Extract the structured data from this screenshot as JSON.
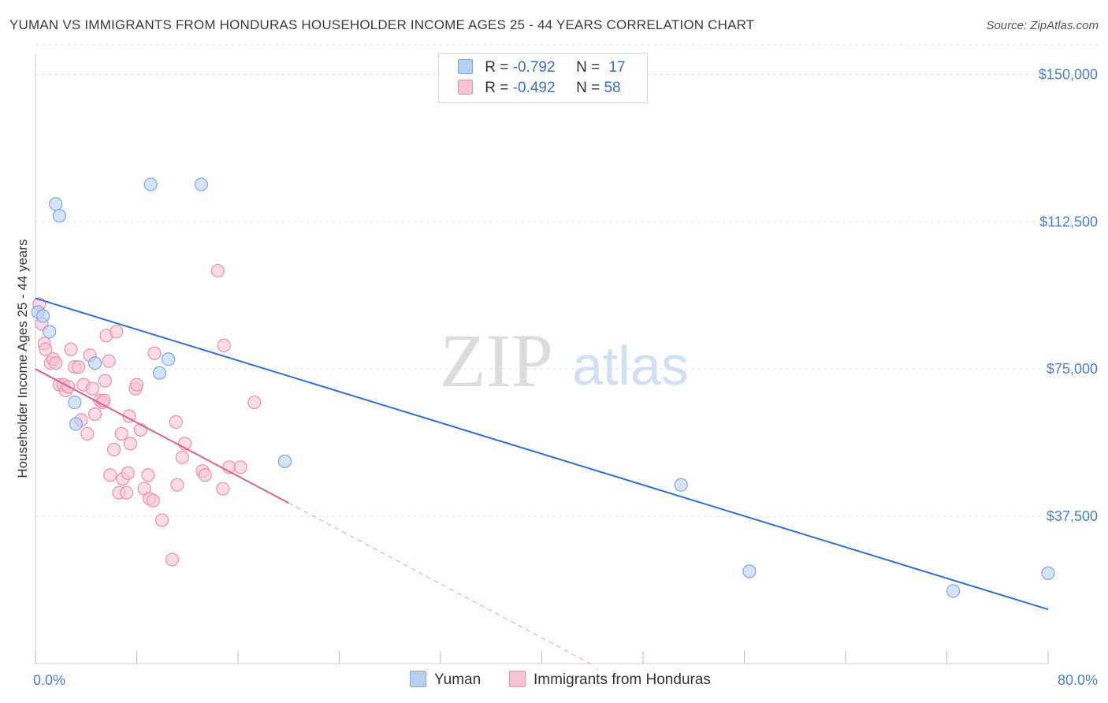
{
  "title": "YUMAN VS IMMIGRANTS FROM HONDURAS HOUSEHOLDER INCOME AGES 25 - 44 YEARS CORRELATION CHART",
  "source": "Source: ZipAtlas.com",
  "watermark": {
    "zip": "ZIP",
    "atlas": "atlas"
  },
  "legend": {
    "rows": [
      {
        "r_label": "R = ",
        "r_value": "-0.792",
        "n_label": "N = ",
        "n_value": "17",
        "color": "#a9c8f0"
      },
      {
        "r_label": "R = ",
        "r_value": "-0.492",
        "n_label": "N = ",
        "n_value": "58",
        "color": "#f5b8cb"
      }
    ]
  },
  "colors": {
    "yuman_fill": "#b7d1f3",
    "yuman_stroke": "#7aa6e0",
    "yuman_line": "#2f6fd1",
    "honduras_fill": "#f8c3d3",
    "honduras_stroke": "#eb8fac",
    "honduras_line": "#e0608c",
    "tick_text": "#4a7fd0",
    "grid": "#e2e2e2"
  },
  "chart_data": {
    "type": "scatter",
    "title": "YUMAN VS IMMIGRANTS FROM HONDURAS HOUSEHOLDER INCOME AGES 25 - 44 YEARS CORRELATION CHART",
    "xlabel": "",
    "ylabel": "Householder Income Ages 25 - 44 years",
    "xlim": [
      0,
      80
    ],
    "ylim": [
      0,
      157500
    ],
    "x_tick_labels": [
      "0.0%",
      "80.0%"
    ],
    "y_ticks": [
      37500,
      75000,
      112500,
      150000
    ],
    "y_tick_labels": [
      "$37,500",
      "$75,000",
      "$112,500",
      "$150,000"
    ],
    "grid": true,
    "legend_position": "top-center",
    "series": [
      {
        "name": "Yuman",
        "r": -0.792,
        "n": 17,
        "trend": {
          "x": [
            0.0,
            80.0
          ],
          "y": [
            93000,
            13800
          ]
        },
        "points": [
          [
            0.2,
            89500
          ],
          [
            0.6,
            88500
          ],
          [
            1.1,
            84500
          ],
          [
            1.6,
            117000
          ],
          [
            1.9,
            114000
          ],
          [
            3.1,
            66500
          ],
          [
            3.2,
            61000
          ],
          [
            4.7,
            76500
          ],
          [
            9.1,
            122000
          ],
          [
            9.8,
            74000
          ],
          [
            10.5,
            77500
          ],
          [
            13.1,
            122000
          ],
          [
            19.7,
            51500
          ],
          [
            51.0,
            45500
          ],
          [
            56.4,
            23500
          ],
          [
            72.5,
            18500
          ],
          [
            80.0,
            23000
          ]
        ]
      },
      {
        "name": "Immigrants from Honduras",
        "r": -0.492,
        "n": 58,
        "trend": {
          "x": [
            0.0,
            20.0
          ],
          "y": [
            75000,
            40900
          ]
        },
        "trend_dashed": {
          "x": [
            20.0,
            45.0
          ],
          "y": [
            40900,
            -2000
          ]
        },
        "points": [
          [
            0.3,
            91500
          ],
          [
            0.5,
            86500
          ],
          [
            0.7,
            81500
          ],
          [
            0.8,
            80000
          ],
          [
            1.2,
            76500
          ],
          [
            1.4,
            77500
          ],
          [
            1.6,
            76500
          ],
          [
            1.9,
            71000
          ],
          [
            2.2,
            71000
          ],
          [
            2.4,
            69500
          ],
          [
            2.6,
            70500
          ],
          [
            2.8,
            80000
          ],
          [
            3.1,
            75500
          ],
          [
            3.4,
            75500
          ],
          [
            3.6,
            62000
          ],
          [
            3.8,
            71000
          ],
          [
            4.1,
            58500
          ],
          [
            4.3,
            78500
          ],
          [
            4.5,
            70000
          ],
          [
            4.7,
            63500
          ],
          [
            5.1,
            67000
          ],
          [
            5.3,
            66500
          ],
          [
            5.5,
            72000
          ],
          [
            5.6,
            83500
          ],
          [
            5.8,
            77000
          ],
          [
            5.4,
            67000
          ],
          [
            5.9,
            48000
          ],
          [
            6.2,
            54500
          ],
          [
            6.4,
            84500
          ],
          [
            6.6,
            43500
          ],
          [
            6.8,
            58500
          ],
          [
            6.9,
            47000
          ],
          [
            7.2,
            43500
          ],
          [
            7.3,
            48500
          ],
          [
            7.4,
            63000
          ],
          [
            7.5,
            56000
          ],
          [
            7.9,
            70000
          ],
          [
            8.0,
            71000
          ],
          [
            8.3,
            59500
          ],
          [
            8.6,
            44500
          ],
          [
            8.9,
            48000
          ],
          [
            9.0,
            42000
          ],
          [
            9.3,
            41500
          ],
          [
            9.4,
            79000
          ],
          [
            10.0,
            36500
          ],
          [
            10.8,
            26500
          ],
          [
            11.1,
            61500
          ],
          [
            11.2,
            45500
          ],
          [
            11.6,
            52500
          ],
          [
            11.8,
            56000
          ],
          [
            13.2,
            49000
          ],
          [
            13.4,
            48000
          ],
          [
            14.4,
            100000
          ],
          [
            14.8,
            44500
          ],
          [
            14.9,
            81000
          ],
          [
            15.3,
            50000
          ],
          [
            16.2,
            50000
          ],
          [
            17.3,
            66500
          ]
        ]
      }
    ]
  },
  "bottom_legend": [
    {
      "label": "Yuman"
    },
    {
      "label": "Immigrants from Honduras"
    }
  ]
}
